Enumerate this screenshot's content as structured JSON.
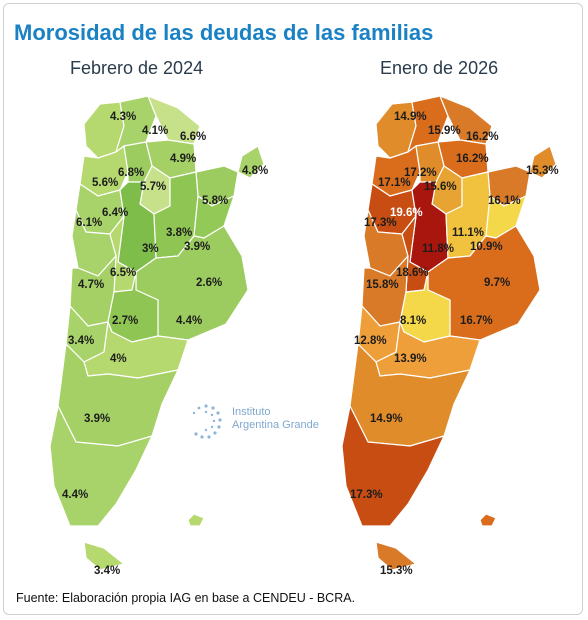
{
  "title": "Morosidad de las deudas de las familias",
  "source": "Fuente: Elaboración propia IAG en base a CENDEU - BCRA.",
  "logo": {
    "line1": "Instituto",
    "line2": "Argentina Grande",
    "icon": "dotted-circle-logo-icon"
  },
  "maps": [
    {
      "period": "Febrero de 2024",
      "labels": [
        "4.3%",
        "4.1%",
        "6.6%",
        "4.9%",
        "6.8%",
        "5.6%",
        "5.7%",
        "4.8%",
        "6.4%",
        "6.1%",
        "5.8%",
        "3%",
        "3.8%",
        "3.9%",
        "6.5%",
        "4.7%",
        "2.6%",
        "2.7%",
        "4.4%",
        "3.4%",
        "4%",
        "3.9%",
        "4.4%",
        "3.4%"
      ]
    },
    {
      "period": "Enero de 2026",
      "labels": [
        "14.9%",
        "15.9%",
        "16.2%",
        "16.2%",
        "17.2%",
        "17.1%",
        "15.6%",
        "15.3%",
        "19.6%",
        "17.3%",
        "16.1%",
        "11.1%",
        "10.9%",
        "11.8%",
        "18.6%",
        "15.8%",
        "9.7%",
        "8.1%",
        "16.7%",
        "12.8%",
        "13.9%",
        "14.9%",
        "17.3%",
        "15.3%"
      ]
    }
  ],
  "colors": {
    "title": "#1a82c4",
    "map1_regions": [
      "#a8d36a",
      "#c7e08a",
      "#9ccc5f",
      "#b5d86f",
      "#8fc653",
      "#7fbd4a",
      "#9bcc5c",
      "#a5d065",
      "#93c957"
    ],
    "map2_regions": [
      "#e08c2a",
      "#d96d1c",
      "#ef9f3a",
      "#c74d12",
      "#f1c23e",
      "#a8160e",
      "#d97a28",
      "#f5d84a",
      "#e7a432"
    ]
  }
}
